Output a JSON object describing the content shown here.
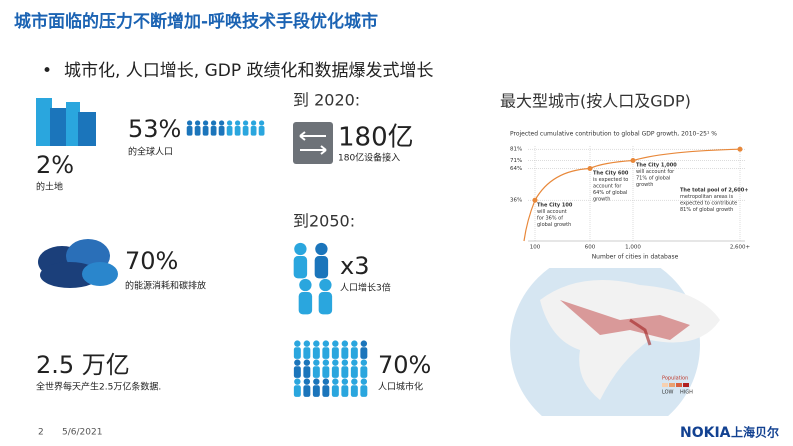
{
  "header": {
    "title": "城市面临的压力不断增加-呼唤技术手段优化城市"
  },
  "bullet": "城市化, 人口增长, GDP 政绩化和数据爆发式增长",
  "stats": {
    "population": {
      "value": "53%",
      "label": "的全球人口"
    },
    "land": {
      "value": "2%",
      "label": "的土地"
    },
    "energy": {
      "value": "70%",
      "label": "的能源消耗和碳排放"
    },
    "data": {
      "value": "2.5 万亿",
      "label": "全世界每天产生2.5万亿条数据."
    }
  },
  "forecast": {
    "y2020": {
      "heading": "到 2020:",
      "value": "180亿",
      "label": "180亿设备接入"
    },
    "y2050": {
      "heading": "到2050:",
      "growth": "x3",
      "growth_label": "人口增长3倍",
      "urban": "70%",
      "urban_label": "人口城市化"
    }
  },
  "right_heading": "最大型城市(按人口及GDP)",
  "chart_data": {
    "type": "line",
    "title": "Projected cumulative contribution to global GDP growth, 2010–25¹ %",
    "x_label": "Number of cities in database",
    "categories": [
      "100",
      "600",
      "1,000",
      "2,600+"
    ],
    "values": [
      36,
      64,
      71,
      81
    ],
    "color": "#e8883a",
    "ylim": [
      0,
      90
    ],
    "yticks": [
      {
        "value": 36,
        "label": "36%"
      },
      {
        "value": 64,
        "label": "64%"
      },
      {
        "value": 71,
        "label": "71%"
      },
      {
        "value": 81,
        "label": "81%"
      }
    ],
    "annotations": [
      [
        "The City 100",
        "will account",
        "for 36% of",
        "global growth"
      ],
      [
        "The City 600",
        "is expected to",
        "account for",
        "64% of global",
        "growth"
      ],
      [
        "The City 1,000",
        "will account for",
        "71% of global",
        "growth"
      ],
      [
        "The total pool of 2,600+",
        "metropolitan areas is",
        "expected to contribute",
        "81% of global growth"
      ]
    ]
  },
  "map_legend": {
    "title": "Population",
    "low": "LOW",
    "high": "HIGH"
  },
  "footer": {
    "page": "2",
    "date": "5/6/2021",
    "brand": "NOKIA",
    "partner": "上海贝尔"
  }
}
